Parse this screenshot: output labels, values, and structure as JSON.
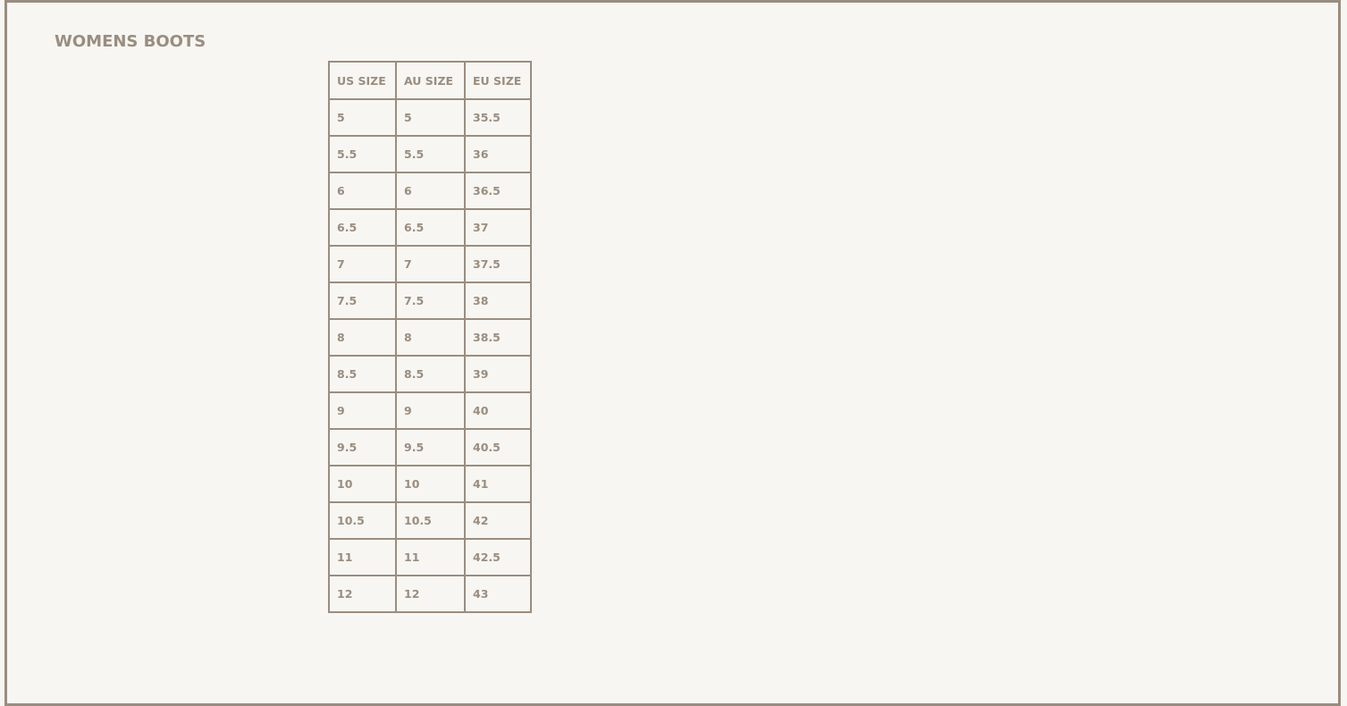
{
  "title": "WOMENS BOOTS",
  "colors": {
    "border": "#9a8d80",
    "text": "#9a8d80",
    "background": "#f7f6f2"
  },
  "table": {
    "headers": [
      "US SIZE",
      "AU SIZE",
      "EU SIZE"
    ],
    "rows": [
      [
        "5",
        "5",
        "35.5"
      ],
      [
        "5.5",
        "5.5",
        "36"
      ],
      [
        "6",
        "6",
        "36.5"
      ],
      [
        "6.5",
        "6.5",
        "37"
      ],
      [
        "7",
        "7",
        "37.5"
      ],
      [
        "7.5",
        "7.5",
        "38"
      ],
      [
        "8",
        "8",
        "38.5"
      ],
      [
        "8.5",
        "8.5",
        "39"
      ],
      [
        "9",
        "9",
        "40"
      ],
      [
        "9.5",
        "9.5",
        "40.5"
      ],
      [
        "10",
        "10",
        "41"
      ],
      [
        "10.5",
        "10.5",
        "42"
      ],
      [
        "11",
        "11",
        "42.5"
      ],
      [
        "12",
        "12",
        "43"
      ]
    ]
  }
}
